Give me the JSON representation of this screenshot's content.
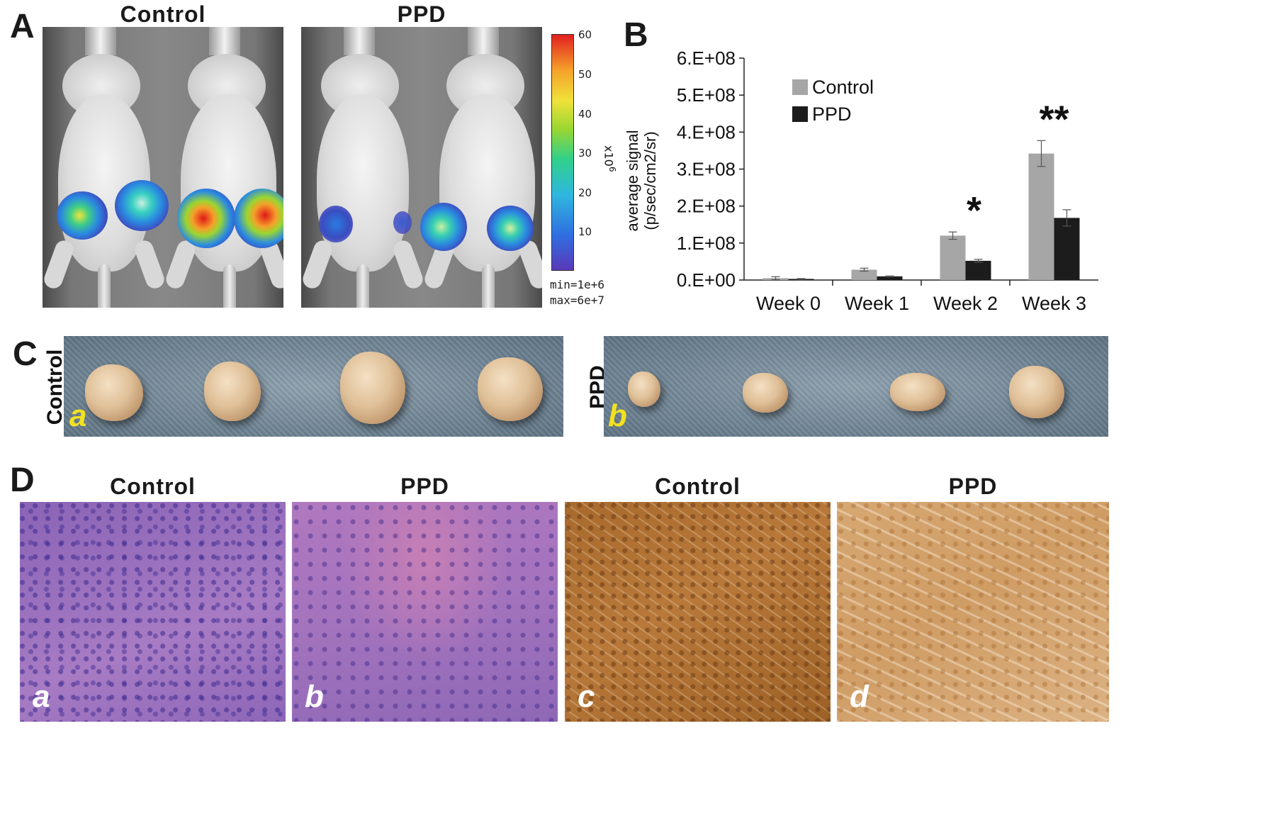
{
  "panelA": {
    "letter": "A",
    "title_left": "Control",
    "title_right": "PPD",
    "colorbar_ticks": [
      "60",
      "50",
      "40",
      "30",
      "20",
      "10"
    ],
    "colorbar_unit": "x10",
    "colorbar_exp": "6",
    "min_text": "min=1e+6",
    "max_text": "max=6e+7"
  },
  "panelB": {
    "letter": "B"
  },
  "panelC": {
    "letter": "C",
    "label_left": "Control",
    "label_right": "PPD",
    "sub_a": "a",
    "sub_b": "b"
  },
  "panelD": {
    "letter": "D",
    "titles": [
      "Control",
      "PPD",
      "Control",
      "PPD"
    ],
    "subs": [
      "a",
      "b",
      "c",
      "d"
    ]
  },
  "chart_data": {
    "type": "bar",
    "categories": [
      "Week 0",
      "Week 1",
      "Week 2",
      "Week 3"
    ],
    "series": [
      {
        "name": "Control",
        "color": "#a6a6a6",
        "values": [
          5000000,
          28000000,
          120000000,
          342000000
        ],
        "errors": [
          4000000,
          4000000,
          10000000,
          35000000
        ]
      },
      {
        "name": "PPD",
        "color": "#1c1c1c",
        "values": [
          3000000,
          10000000,
          52000000,
          168000000
        ],
        "errors": [
          1000000,
          1000000,
          4000000,
          22000000
        ]
      }
    ],
    "ylabel_line1": "average signal",
    "ylabel_line2": "(p/sec/cm2/sr)",
    "yticks": [
      "0.E+00",
      "1.E+08",
      "2.E+08",
      "3.E+08",
      "4.E+08",
      "5.E+08",
      "6.E+08"
    ],
    "ylim": [
      0,
      600000000
    ],
    "legend_position": "top-left",
    "annotations": [
      {
        "category": "Week 2",
        "text": "*"
      },
      {
        "category": "Week 3",
        "text": "**"
      }
    ]
  }
}
